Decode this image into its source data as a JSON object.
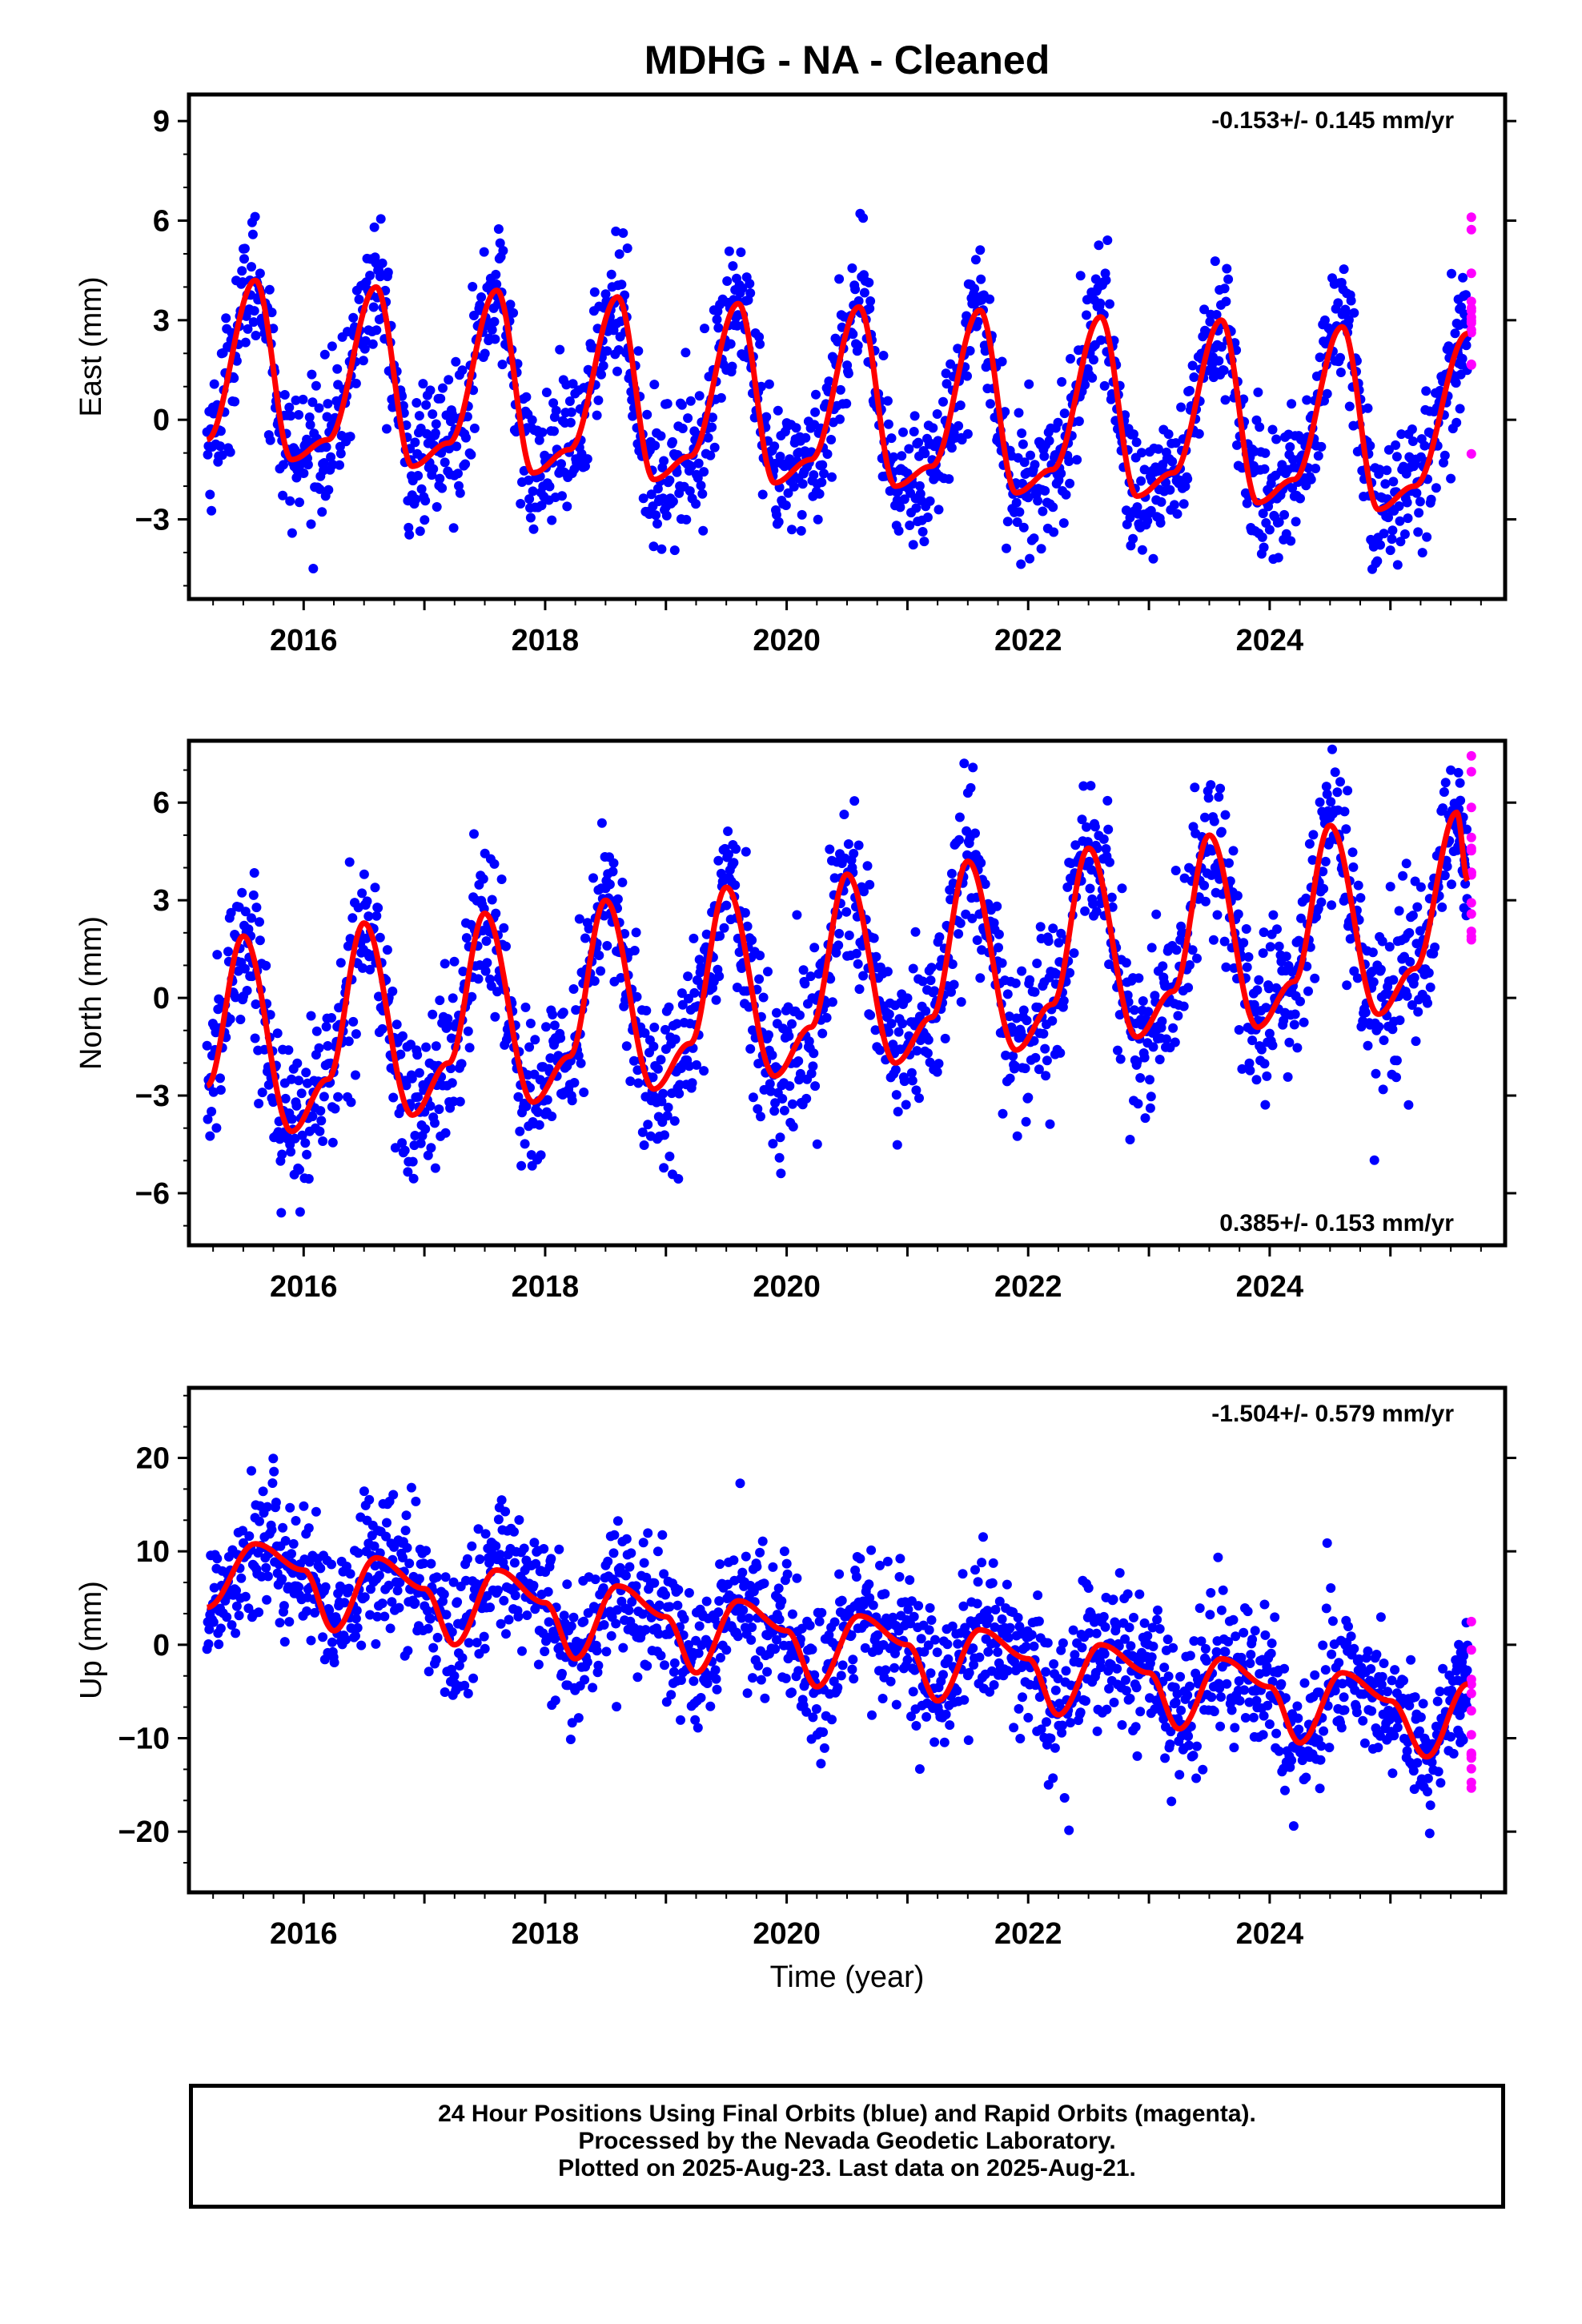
{
  "title": "MDHG  - NA - Cleaned",
  "xlabel": "Time (year)",
  "footer": {
    "line1": "24 Hour Positions Using Final Orbits (blue) and Rapid Orbits (magenta).",
    "line2": "Processed by the Nevada Geodetic Laboratory.",
    "line3": "Plotted on 2025-Aug-23. Last data on 2025-Aug-21."
  },
  "colors": {
    "final": "#0000ff",
    "rapid": "#ff00ff",
    "model": "#ff0000",
    "axis": "#000000"
  },
  "chart_data": [
    {
      "type": "scatter",
      "panel": "east",
      "ylabel": "East (mm)",
      "rate_label": "-0.153+/- 0.145 mm/yr",
      "rate_position": "top-right",
      "xlim": [
        2015.05,
        2025.95
      ],
      "ylim": [
        -5.4,
        9.8
      ],
      "yticks": [
        -3,
        0,
        3,
        6,
        9
      ],
      "xticks": [
        2016,
        2018,
        2020,
        2022,
        2024
      ],
      "xtick_labels": [
        "2016",
        "2018",
        "2020",
        "2022",
        "2024"
      ],
      "ytick_labels": [
        "−3",
        "0",
        "3",
        "6",
        "9"
      ],
      "data_span": [
        2015.2,
        2025.64
      ],
      "rapid_span": [
        2025.54,
        2025.64
      ],
      "model": {
        "trend_mm_per_yr": -0.153,
        "offset": 1.5,
        "annual_amp": 2.75,
        "annual_phase": 0.58,
        "semiannual_amp": 0.0,
        "semiannual_phase": 0.0,
        "noise_sd": 1.05
      },
      "series": [
        {
          "values": [
            [
              2015.2,
              -0.6
            ],
            [
              2015.6,
              4.2
            ],
            [
              2015.9,
              -1.2
            ],
            [
              2016.2,
              -0.6
            ],
            [
              2016.6,
              4.0
            ],
            [
              2016.9,
              -1.4
            ],
            [
              2017.2,
              -0.7
            ],
            [
              2017.6,
              3.9
            ],
            [
              2017.9,
              -1.6
            ],
            [
              2018.2,
              -0.9
            ],
            [
              2018.6,
              3.7
            ],
            [
              2018.9,
              -1.8
            ],
            [
              2019.2,
              -1.1
            ],
            [
              2019.6,
              3.5
            ],
            [
              2019.9,
              -1.9
            ],
            [
              2020.2,
              -1.2
            ],
            [
              2020.6,
              3.4
            ],
            [
              2020.9,
              -2.0
            ],
            [
              2021.2,
              -1.4
            ],
            [
              2021.6,
              3.3
            ],
            [
              2021.9,
              -2.2
            ],
            [
              2022.2,
              -1.5
            ],
            [
              2022.6,
              3.1
            ],
            [
              2022.9,
              -2.3
            ],
            [
              2023.2,
              -1.6
            ],
            [
              2023.6,
              3.0
            ],
            [
              2023.9,
              -2.5
            ],
            [
              2024.2,
              -1.8
            ],
            [
              2024.6,
              2.8
            ],
            [
              2024.9,
              -2.7
            ],
            [
              2025.2,
              -2.0
            ],
            [
              2025.64,
              2.6
            ]
          ]
        }
      ]
    },
    {
      "type": "scatter",
      "panel": "north",
      "ylabel": "North (mm)",
      "rate_label": "0.385+/- 0.153 mm/yr",
      "rate_position": "bottom-right",
      "xlim": [
        2015.05,
        2025.95
      ],
      "ylim": [
        -7.6,
        7.9
      ],
      "yticks": [
        -6,
        -3,
        0,
        3,
        6
      ],
      "xticks": [
        2016,
        2018,
        2020,
        2022,
        2024
      ],
      "xtick_labels": [
        "2016",
        "2018",
        "2020",
        "2022",
        "2024"
      ],
      "ytick_labels": [
        "−6",
        "−3",
        "0",
        "3",
        "6"
      ],
      "data_span": [
        2015.2,
        2025.64
      ],
      "rapid_span": [
        2025.54,
        2025.64
      ],
      "model": {
        "trend_mm_per_yr": 0.385,
        "offset": -1.3,
        "annual_amp": 2.55,
        "annual_phase": 0.47,
        "semiannual_amp": 0.55,
        "semiannual_phase": 0.2,
        "noise_sd": 1.25
      },
      "series": [
        {
          "values": [
            [
              2015.2,
              -2.7
            ],
            [
              2015.5,
              1.9
            ],
            [
              2015.9,
              -4.1
            ],
            [
              2016.2,
              -2.5
            ],
            [
              2016.5,
              2.3
            ],
            [
              2016.9,
              -3.6
            ],
            [
              2017.2,
              -2.0
            ],
            [
              2017.5,
              2.6
            ],
            [
              2017.9,
              -3.2
            ],
            [
              2018.2,
              -1.8
            ],
            [
              2018.5,
              3.0
            ],
            [
              2018.9,
              -2.8
            ],
            [
              2019.2,
              -1.4
            ],
            [
              2019.5,
              3.4
            ],
            [
              2019.9,
              -2.4
            ],
            [
              2020.2,
              -0.9
            ],
            [
              2020.5,
              3.8
            ],
            [
              2020.9,
              -2.0
            ],
            [
              2021.2,
              -0.6
            ],
            [
              2021.5,
              4.2
            ],
            [
              2021.9,
              -1.6
            ],
            [
              2022.2,
              -0.2
            ],
            [
              2022.5,
              4.6
            ],
            [
              2022.9,
              -1.2
            ],
            [
              2023.2,
              0.2
            ],
            [
              2023.5,
              5.0
            ],
            [
              2023.9,
              -0.9
            ],
            [
              2024.2,
              0.5
            ],
            [
              2024.5,
              5.3
            ],
            [
              2024.9,
              -0.5
            ],
            [
              2025.2,
              0.9
            ],
            [
              2025.55,
              5.7
            ],
            [
              2025.64,
              3.6
            ]
          ]
        }
      ]
    },
    {
      "type": "scatter",
      "panel": "up",
      "ylabel": "Up (mm)",
      "rate_label": "-1.504+/- 0.579 mm/yr",
      "rate_position": "top-right",
      "xlim": [
        2015.05,
        2025.95
      ],
      "ylim": [
        -26.5,
        27.5
      ],
      "yticks": [
        -20,
        -10,
        0,
        10,
        20
      ],
      "xticks": [
        2016,
        2018,
        2020,
        2022,
        2024
      ],
      "xtick_labels": [
        "2016",
        "2018",
        "2020",
        "2022",
        "2024"
      ],
      "ytick_labels": [
        "−20",
        "−10",
        "0",
        "10",
        "20"
      ],
      "data_span": [
        2015.2,
        2025.64
      ],
      "rapid_span": [
        2025.54,
        2025.64
      ],
      "model": {
        "trend_mm_per_yr": -1.504,
        "offset": 7.5,
        "annual_amp": 4.2,
        "annual_phase": 0.62,
        "semiannual_amp": 1.2,
        "semiannual_phase": 0.05,
        "noise_sd": 3.9
      },
      "series": [
        {
          "values": [
            [
              2015.2,
              4.0
            ],
            [
              2015.6,
              10.8
            ],
            [
              2016.0,
              8.0
            ],
            [
              2016.25,
              1.5
            ],
            [
              2016.6,
              9.3
            ],
            [
              2017.0,
              6.0
            ],
            [
              2017.25,
              0.0
            ],
            [
              2017.6,
              8.0
            ],
            [
              2018.0,
              4.5
            ],
            [
              2018.25,
              -1.5
            ],
            [
              2018.6,
              6.3
            ],
            [
              2019.0,
              3.0
            ],
            [
              2019.25,
              -3.0
            ],
            [
              2019.6,
              4.7
            ],
            [
              2020.0,
              1.5
            ],
            [
              2020.25,
              -4.5
            ],
            [
              2020.6,
              3.1
            ],
            [
              2021.0,
              0.0
            ],
            [
              2021.25,
              -6.0
            ],
            [
              2021.6,
              1.6
            ],
            [
              2022.0,
              -1.5
            ],
            [
              2022.25,
              -7.5
            ],
            [
              2022.6,
              0.0
            ],
            [
              2023.0,
              -3.0
            ],
            [
              2023.25,
              -9.0
            ],
            [
              2023.6,
              -1.5
            ],
            [
              2024.0,
              -4.5
            ],
            [
              2024.25,
              -10.5
            ],
            [
              2024.6,
              -3.0
            ],
            [
              2025.0,
              -6.0
            ],
            [
              2025.3,
              -12.0
            ],
            [
              2025.64,
              -4.2
            ]
          ]
        }
      ]
    }
  ]
}
